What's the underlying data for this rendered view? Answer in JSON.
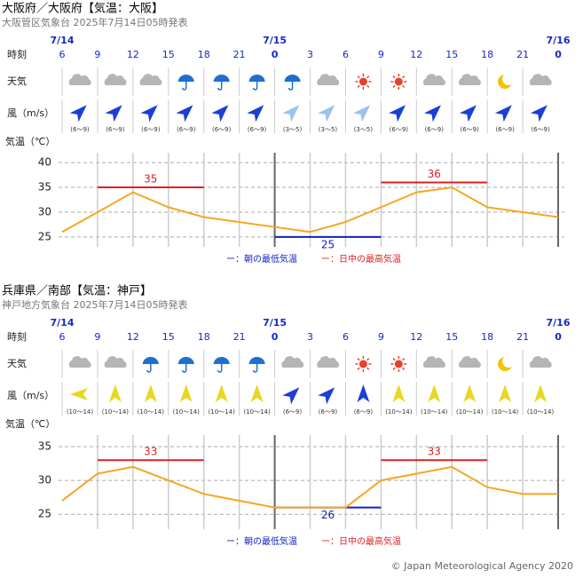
{
  "panels": [
    {
      "title": "大阪府／大阪府【気温：大阪】",
      "subtitle": "大阪管区気象台 2025年7月14日05時発表",
      "row_labels": {
        "time": "時刻",
        "weather": "天気",
        "wind": "風（m/s）",
        "temp": "気温（℃）"
      },
      "dates": [
        "7/14",
        null,
        null,
        null,
        null,
        null,
        "7/15",
        null,
        null,
        null,
        null,
        null,
        null,
        null,
        "7/16"
      ],
      "hours": [
        "6",
        "9",
        "12",
        "15",
        "18",
        "21",
        "0",
        "3",
        "6",
        "9",
        "12",
        "15",
        "18",
        "21",
        "0"
      ],
      "weather": [
        "cloudy",
        "cloudy",
        "cloudy",
        "rain",
        "rain",
        "rain",
        "rain",
        "cloudy",
        "sunny",
        "sunny",
        "cloudy",
        "cloudy",
        "moon",
        "cloudy"
      ],
      "wind": {
        "labels": [
          "(6～9)",
          "(6～9)",
          "(6～9)",
          "(6～9)",
          "(6～9)",
          "(6～9)",
          "(3～5)",
          "(3～5)",
          "(3～5)",
          "(6～9)",
          "(6～9)",
          "(6～9)",
          "(6～9)",
          "(6～9)"
        ],
        "directions": [
          45,
          45,
          45,
          45,
          45,
          45,
          45,
          45,
          45,
          45,
          45,
          45,
          45,
          45
        ],
        "colors": [
          "#1a3fd6",
          "#1a3fd6",
          "#1a3fd6",
          "#1a3fd6",
          "#1a3fd6",
          "#1a3fd6",
          "#9cc3ee",
          "#9cc3ee",
          "#9cc3ee",
          "#1a3fd6",
          "#1a3fd6",
          "#1a3fd6",
          "#1a3fd6",
          "#1a3fd6"
        ]
      },
      "chart_data": {
        "type": "line",
        "color": "#f5a623",
        "ylim": [
          23,
          42
        ],
        "yticks": [
          25,
          30,
          35,
          40
        ],
        "values": [
          26,
          30,
          34,
          31,
          29,
          28,
          27,
          26,
          28,
          31,
          34,
          35,
          31,
          30,
          29
        ],
        "extremes": [
          {
            "value": 35,
            "from": 1,
            "to": 4,
            "color": "#e02020"
          },
          {
            "value": 25,
            "from": 6,
            "to": 9,
            "color": "#1020c0"
          },
          {
            "value": 36,
            "from": 9,
            "to": 12,
            "color": "#e02020"
          }
        ],
        "legend": [
          {
            "text": "ー：朝の最低気温",
            "color": "#1020c0"
          },
          {
            "text": "ー：日中の最高気温",
            "color": "#e02020"
          }
        ]
      }
    },
    {
      "title": "兵庫県／南部【気温：神戸】",
      "subtitle": "神戸地方気象台 2025年7月14日05時発表",
      "row_labels": {
        "time": "時刻",
        "weather": "天気",
        "wind": "風（m/s）",
        "temp": "気温（℃）"
      },
      "dates": [
        "7/14",
        null,
        null,
        null,
        null,
        null,
        "7/15",
        null,
        null,
        null,
        null,
        null,
        null,
        null,
        "7/16"
      ],
      "hours": [
        "6",
        "9",
        "12",
        "15",
        "18",
        "21",
        "0",
        "3",
        "6",
        "9",
        "12",
        "15",
        "18",
        "21",
        "0"
      ],
      "weather": [
        "cloudy",
        "cloudy",
        "rain",
        "rain",
        "rain",
        "rain",
        "cloudy",
        "cloudy",
        "sunny",
        "sunny",
        "cloudy",
        "cloudy",
        "moon",
        "cloudy"
      ],
      "wind": {
        "labels": [
          "(10～14)",
          "(10～14)",
          "(10～14)",
          "(10～14)",
          "(10～14)",
          "(10～14)",
          "(6～9)",
          "(6～9)",
          "(6～9)",
          "(10～14)",
          "(10～14)",
          "(10～14)",
          "(10～14)",
          "(10～14)"
        ],
        "directions": [
          -90,
          0,
          0,
          0,
          0,
          0,
          45,
          45,
          0,
          0,
          0,
          0,
          0,
          0
        ],
        "colors": [
          "#e8d820",
          "#e8d820",
          "#e8d820",
          "#e8d820",
          "#e8d820",
          "#e8d820",
          "#1a3fd6",
          "#1a3fd6",
          "#1a3fd6",
          "#e8d820",
          "#e8d820",
          "#e8d820",
          "#e8d820",
          "#e8d820"
        ]
      },
      "chart_data": {
        "type": "line",
        "color": "#f5a623",
        "ylim": [
          22.8,
          36.7
        ],
        "yticks": [
          25,
          30,
          35
        ],
        "values": [
          27,
          31,
          32,
          30,
          28,
          27,
          26,
          26,
          26,
          30,
          31,
          32,
          29,
          28,
          28
        ],
        "extremes": [
          {
            "value": 33,
            "from": 1,
            "to": 4,
            "color": "#e02020"
          },
          {
            "value": 26,
            "from": 6,
            "to": 9,
            "color": "#1020c0"
          },
          {
            "value": 33,
            "from": 9,
            "to": 12,
            "color": "#e02020"
          }
        ],
        "legend": [
          {
            "text": "ー：朝の最低気温",
            "color": "#1020c0"
          },
          {
            "text": "ー：日中の最高気温",
            "color": "#e02020"
          }
        ]
      }
    }
  ],
  "footer": "© Japan Meteorological Agency 2020"
}
